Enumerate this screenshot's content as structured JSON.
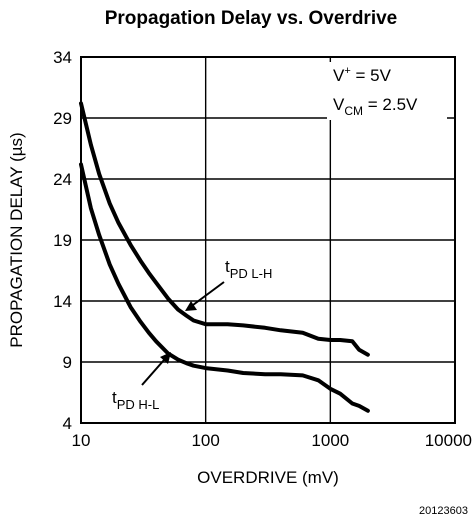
{
  "chart_data": {
    "type": "line",
    "title": "Propagation Delay vs. Overdrive",
    "xlabel": "OVERDRIVE (mV)",
    "ylabel": "PROPAGATION DELAY (µs)",
    "xscale": "log",
    "xlim": [
      10,
      10000
    ],
    "ylim": [
      4,
      34
    ],
    "x_ticks": [
      10,
      100,
      1000,
      10000
    ],
    "x_tick_labels": [
      "10",
      "100",
      "1000",
      "10000"
    ],
    "y_ticks": [
      4,
      9,
      14,
      19,
      24,
      29,
      34
    ],
    "y_tick_labels": [
      "4",
      "9",
      "14",
      "19",
      "24",
      "29",
      "34"
    ],
    "grid": true,
    "conditions": {
      "supply": {
        "main": "V",
        "sup": "+",
        "rest": " = 5V"
      },
      "vcm": {
        "main": "V",
        "sub": "CM",
        "rest": " = 2.5V"
      }
    },
    "series": [
      {
        "name": "tPD L-H",
        "label_main": "t",
        "label_sub": "PD L-H",
        "x": [
          10,
          12,
          14,
          17,
          20,
          25,
          30,
          35,
          40,
          50,
          60,
          70,
          80,
          100,
          150,
          200,
          300,
          400,
          600,
          800,
          1000,
          1200,
          1500,
          1700,
          2000
        ],
        "y": [
          30.2,
          26.8,
          24.4,
          22.0,
          20.4,
          18.6,
          17.3,
          16.3,
          15.5,
          14.2,
          13.3,
          12.8,
          12.4,
          12.1,
          12.1,
          12.0,
          11.8,
          11.6,
          11.4,
          10.9,
          10.8,
          10.8,
          10.7,
          10.0,
          9.6
        ]
      },
      {
        "name": "tPD H-L",
        "label_main": "t",
        "label_sub": "PD H-L",
        "x": [
          10,
          12,
          14,
          17,
          20,
          25,
          30,
          35,
          40,
          50,
          60,
          70,
          80,
          100,
          150,
          200,
          300,
          400,
          600,
          800,
          1000,
          1200,
          1500,
          1700,
          2000
        ],
        "y": [
          25.2,
          21.6,
          19.4,
          17.0,
          15.4,
          13.5,
          12.3,
          11.4,
          10.7,
          9.7,
          9.2,
          8.9,
          8.7,
          8.5,
          8.3,
          8.1,
          8.0,
          8.0,
          7.9,
          7.5,
          6.8,
          6.4,
          5.6,
          5.4,
          5.0
        ]
      }
    ],
    "figure_id": "20123603"
  }
}
